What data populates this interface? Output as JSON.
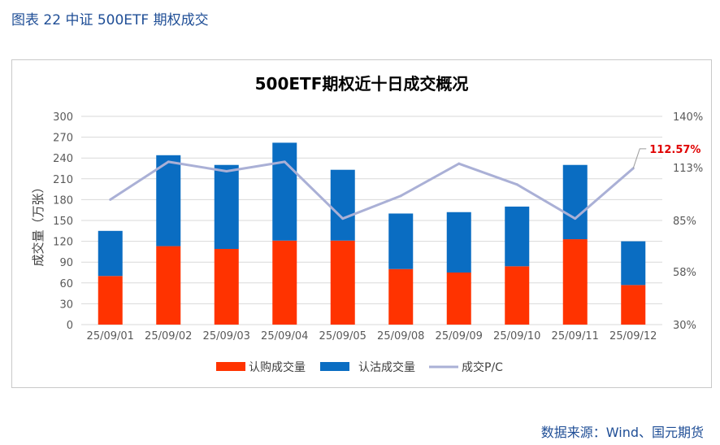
{
  "figure": {
    "caption": "图表 22  中证 500ETF 期权成交",
    "source": "数据来源：Wind、国元期货"
  },
  "colors": {
    "call": "#ff3300",
    "put": "#0a6dc2",
    "pc_line": "#aab0d6",
    "pc_label": "#e00000",
    "caption": "#1f4e96"
  },
  "chart_data": {
    "type": "bar",
    "stacked": true,
    "title": "500ETF期权近十日成交概况",
    "xlabel": "",
    "ylabel": "成交量（万张）",
    "ylim": [
      0,
      300
    ],
    "yticks": [
      0,
      30,
      60,
      90,
      120,
      150,
      180,
      210,
      240,
      270,
      300
    ],
    "y2lim": [
      30,
      140
    ],
    "y2ticks": [
      "30%",
      "58%",
      "85%",
      "113%",
      "140%"
    ],
    "y2tick_values": [
      30,
      58,
      85,
      113,
      140
    ],
    "categories": [
      "25/09/01",
      "25/09/02",
      "25/09/03",
      "25/09/04",
      "25/09/05",
      "25/09/08",
      "25/09/09",
      "25/09/10",
      "25/09/11",
      "25/09/12"
    ],
    "series": [
      {
        "name": "认购成交量",
        "axis": "left",
        "kind": "bar",
        "values": [
          70,
          113,
          109,
          121,
          121,
          80,
          75,
          84,
          123,
          57
        ]
      },
      {
        "name": "认沽成交量",
        "axis": "left",
        "kind": "bar",
        "values": [
          65,
          131,
          121,
          141,
          102,
          80,
          87,
          86,
          107,
          63
        ]
      },
      {
        "name": "成交P/C",
        "axis": "right",
        "kind": "line",
        "values": [
          96,
          116,
          111,
          116,
          86,
          98,
          115,
          104,
          86,
          112.57
        ]
      }
    ],
    "annotation": "112.57%",
    "legend_position": "bottom"
  }
}
